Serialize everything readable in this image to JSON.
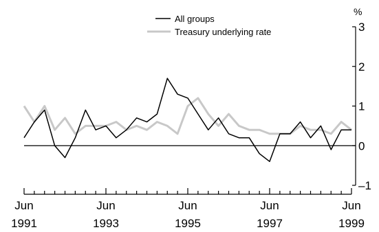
{
  "chart_data": {
    "type": "line",
    "title": "",
    "xlabel": "",
    "ylabel": "",
    "y_unit": "%",
    "ylim": [
      -1,
      3
    ],
    "y_ticks": [
      -1,
      0,
      1,
      2,
      3
    ],
    "y_tick_labels": [
      "–1",
      "0",
      "1",
      "2",
      "3"
    ],
    "y_axis_side": "right",
    "zero_line": true,
    "grid": false,
    "legend_placement": "top-center",
    "x_tick_labels": [
      {
        "line1": "Jun",
        "line2": "1991"
      },
      {
        "line1": "Jun",
        "line2": "1993"
      },
      {
        "line1": "Jun",
        "line2": "1995"
      },
      {
        "line1": "Jun",
        "line2": "1997"
      },
      {
        "line1": "Jun",
        "line2": "1999"
      }
    ],
    "x": [
      "Jun 1991",
      "Sep 1991",
      "Dec 1991",
      "Mar 1992",
      "Jun 1992",
      "Sep 1992",
      "Dec 1992",
      "Mar 1993",
      "Jun 1993",
      "Sep 1993",
      "Dec 1993",
      "Mar 1994",
      "Jun 1994",
      "Sep 1994",
      "Dec 1994",
      "Mar 1995",
      "Jun 1995",
      "Sep 1995",
      "Dec 1995",
      "Mar 1996",
      "Jun 1996",
      "Sep 1996",
      "Dec 1996",
      "Mar 1997",
      "Jun 1997",
      "Sep 1997",
      "Dec 1997",
      "Mar 1998",
      "Jun 1998",
      "Sep 1998",
      "Dec 1998",
      "Mar 1999",
      "Jun 1999"
    ],
    "series": [
      {
        "name": "All groups",
        "color": "#000000",
        "values": [
          0.2,
          0.6,
          0.9,
          0.0,
          -0.3,
          0.2,
          0.9,
          0.4,
          0.5,
          0.2,
          0.4,
          0.7,
          0.6,
          0.8,
          1.7,
          1.3,
          1.2,
          0.8,
          0.4,
          0.7,
          0.3,
          0.2,
          0.2,
          -0.2,
          -0.4,
          0.3,
          0.3,
          0.6,
          0.2,
          0.5,
          -0.1,
          0.4,
          0.4
        ]
      },
      {
        "name": "Treasury underlying rate",
        "color": "#c8c8c8",
        "values": [
          1.0,
          0.6,
          1.0,
          0.4,
          0.7,
          0.3,
          0.5,
          0.5,
          0.5,
          0.6,
          0.4,
          0.5,
          0.4,
          0.6,
          0.5,
          0.3,
          1.0,
          1.2,
          0.8,
          0.5,
          0.8,
          0.5,
          0.4,
          0.4,
          0.3,
          0.3,
          0.3,
          0.5,
          0.4,
          0.4,
          0.3,
          0.6,
          0.4
        ]
      }
    ]
  }
}
